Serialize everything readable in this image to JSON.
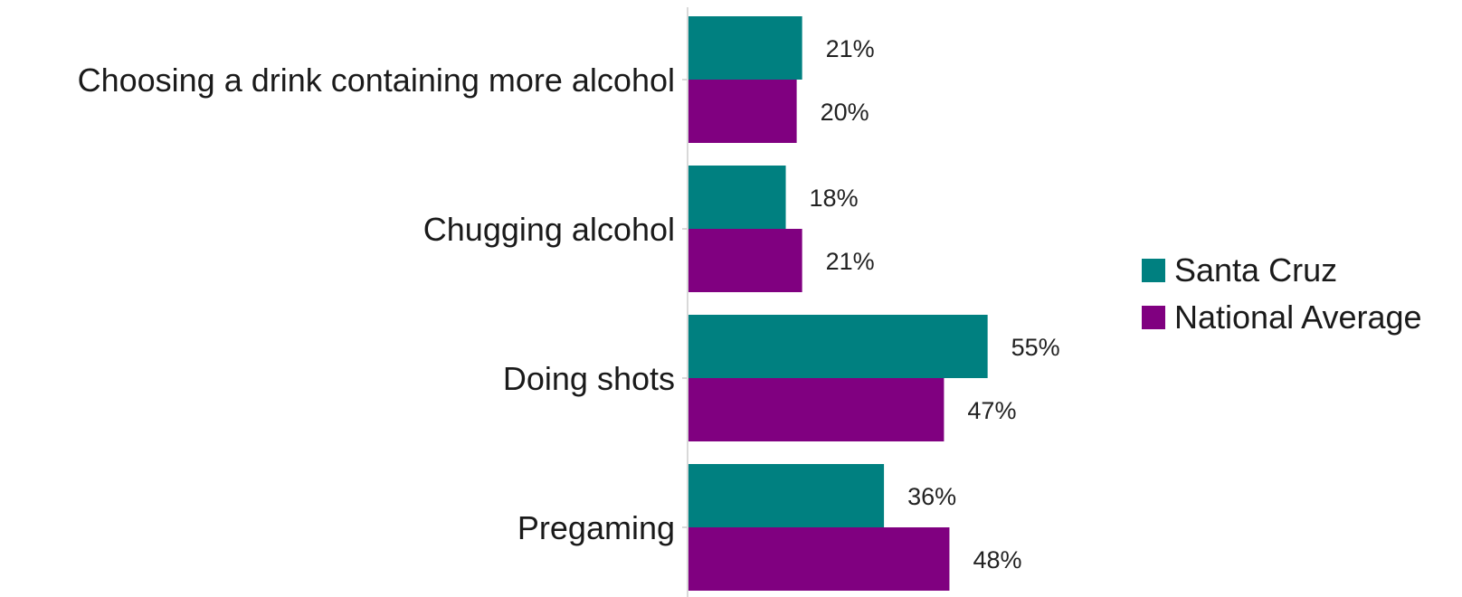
{
  "chart_data": {
    "type": "bar",
    "orientation": "horizontal",
    "categories": [
      "Choosing a drink containing more alcohol",
      "Chugging alcohol",
      "Doing shots",
      "Pregaming"
    ],
    "series": [
      {
        "name": "Santa Cruz",
        "color": "#008080",
        "values": [
          21,
          18,
          55,
          36
        ],
        "labels": [
          "21%",
          "18%",
          "55%",
          "36%"
        ]
      },
      {
        "name": "National Average",
        "color": "#800080",
        "values": [
          20,
          21,
          47,
          48
        ],
        "labels": [
          "20%",
          "21%",
          "47%",
          "48%"
        ]
      }
    ],
    "title": "",
    "xlabel": "",
    "ylabel": "",
    "xlim": [
      0,
      100
    ],
    "grid": false,
    "legend": "right",
    "axis_color": "#d9d9d9"
  }
}
